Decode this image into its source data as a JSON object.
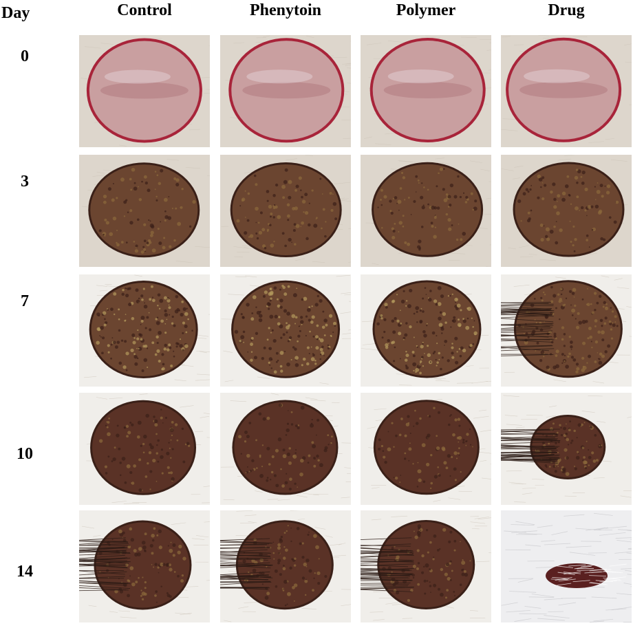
{
  "header": {
    "day_label": "Day"
  },
  "groups": [
    "Control",
    "Phenytoin",
    "Polymer",
    "Drug"
  ],
  "days": [
    "0",
    "3",
    "7",
    "10",
    "14"
  ],
  "panel_kind": "wound photograph",
  "colors": {
    "skin": "#ddd6cc",
    "fur": "#f0eeea",
    "fresh_wound_rim": "#a8243a",
    "fresh_wound_bed": "#c99fa0",
    "scab": "#6b4530",
    "scab_light": "#8b6a3c",
    "scab_dark": "#3a2018"
  }
}
